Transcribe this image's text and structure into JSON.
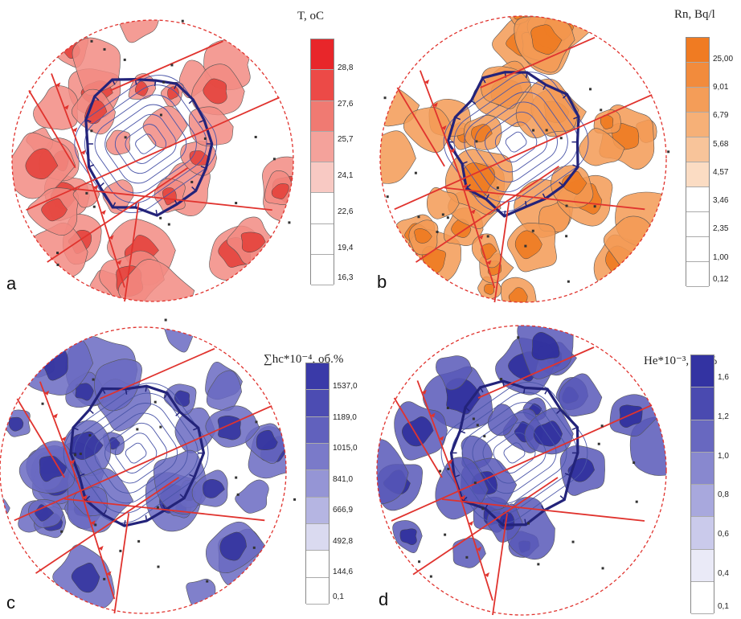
{
  "panels": [
    {
      "id": "a",
      "letter": "a",
      "legend_title": "T, oC",
      "legend_ticks": [
        "28,8",
        "27,6",
        "25,7",
        "24,1",
        "22,6",
        "19,4",
        "16,3"
      ],
      "legend_colors": [
        "#e8262a",
        "#ec4a47",
        "#f07a72",
        "#f4a29b",
        "#f8c9c3",
        "#ffffff",
        "#ffffff",
        "#ffffff"
      ],
      "fill_color": "#f28b83",
      "fill_dark": "#e4423c"
    },
    {
      "id": "b",
      "letter": "b",
      "legend_title": "Rn, Bq/l",
      "legend_ticks": [
        "25,00",
        "9,01",
        "6,79",
        "5,68",
        "4,57",
        "3,46",
        "2,35",
        "1,00",
        "0,12"
      ],
      "legend_colors": [
        "#f07b22",
        "#f28b3c",
        "#f49d58",
        "#f6b077",
        "#f8c49a",
        "#fbdcc3",
        "#ffffff",
        "#ffffff",
        "#ffffff",
        "#ffffff"
      ],
      "fill_color": "#f39a55",
      "fill_dark": "#ee7a20"
    },
    {
      "id": "c",
      "letter": "c",
      "legend_title": "∑hc*10⁻⁴, об.%",
      "legend_ticks": [
        "1537,0",
        "1189,0",
        "1015,0",
        "841,0",
        "666,9",
        "492,8",
        "144,6",
        "0,1"
      ],
      "legend_colors": [
        "#3a3aa8",
        "#4c4cb2",
        "#6161bd",
        "#7a7ac9",
        "#9595d5",
        "#b5b5e2",
        "#dadaf0",
        "#ffffff",
        "#ffffff"
      ],
      "fill_color": "#6a6ac2",
      "fill_dark": "#33339f"
    },
    {
      "id": "d",
      "letter": "d",
      "legend_title": "He*10⁻³, об.%",
      "legend_ticks": [
        "1,6",
        "1,2",
        "1,0",
        "0,8",
        "0,6",
        "0,4",
        "0,1"
      ],
      "legend_colors": [
        "#3333a2",
        "#4a4ab0",
        "#6868c0",
        "#8888cf",
        "#a8a8dd",
        "#cacaeb",
        "#eaeaf7",
        "#ffffff"
      ],
      "fill_color": "#5858b8",
      "fill_dark": "#2e2e9c"
    }
  ]
}
